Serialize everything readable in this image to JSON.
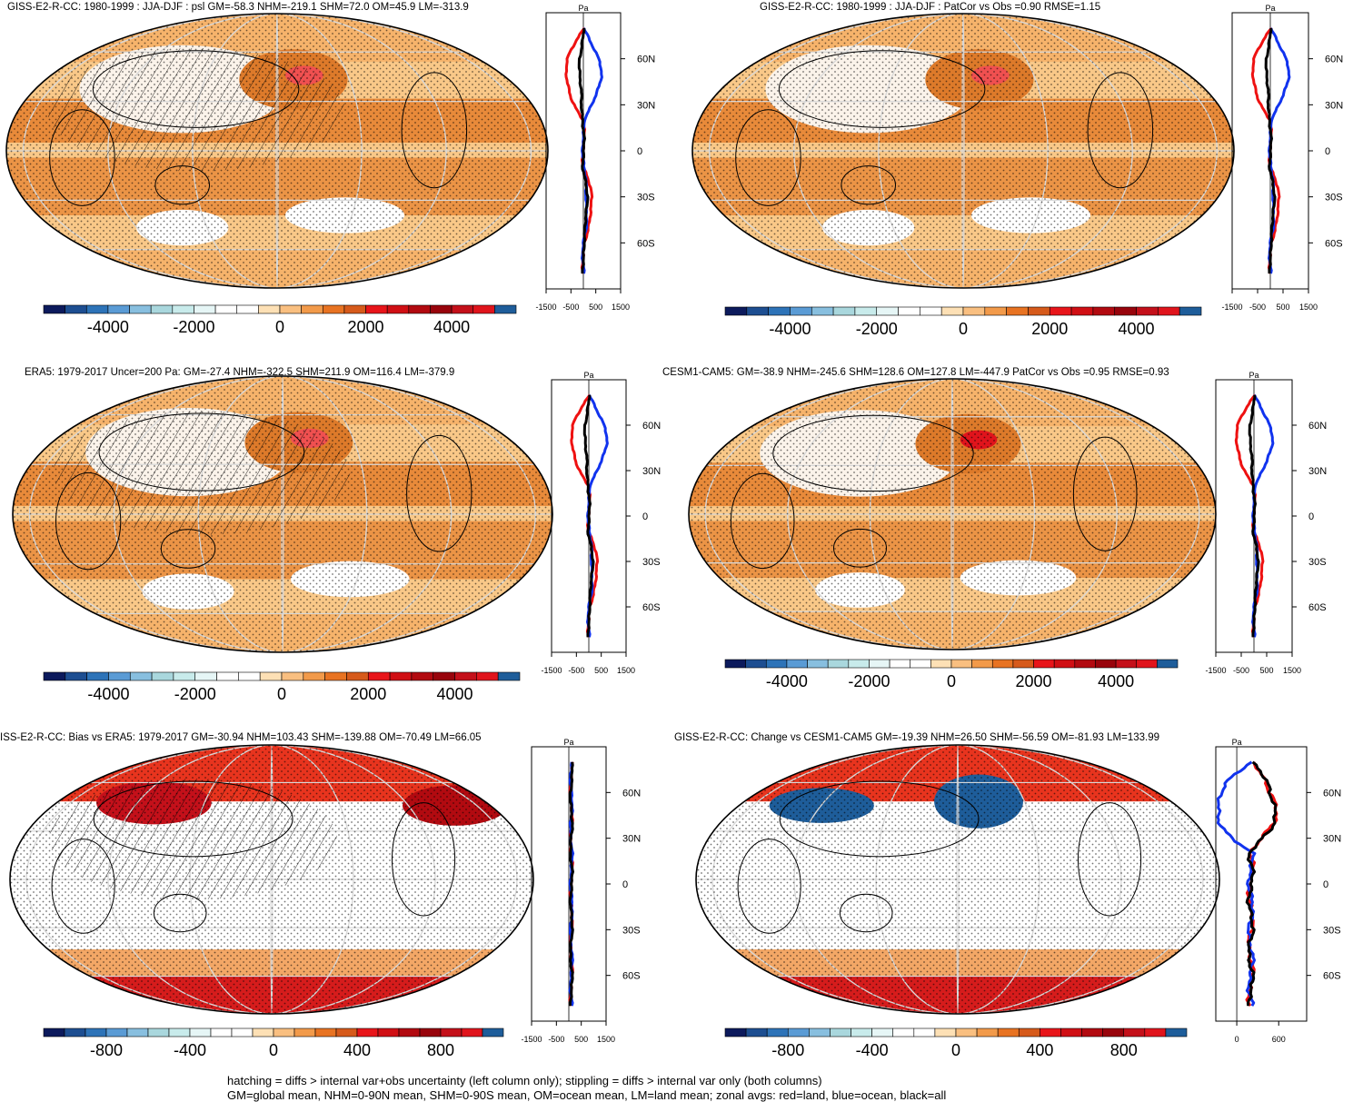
{
  "figure": {
    "captions": [
      "hatching = diffs > internal var+obs uncertainty (left column only); stippling = diffs > internal var only (both columns)",
      "GM=global mean, NHM=0-90N mean, SHM=0-90S mean, OM=ocean mean, LM=land mean; zonal avgs: red=land, blue=ocean, black=all"
    ],
    "profile_unit": "Pa",
    "lat_ticks": [
      "60N",
      "30N",
      "0",
      "30S",
      "60S"
    ]
  },
  "colors": {
    "land": "#ee1111",
    "ocean": "#1133ee",
    "all": "#000000",
    "palette": [
      "#0c1a5c",
      "#1d4e91",
      "#2d73b8",
      "#5a9bd5",
      "#88bfdf",
      "#a9d7dd",
      "#c8ebeb",
      "#e6f6f6",
      "#ffffff",
      "#ffffff",
      "#fde0b5",
      "#f9bf80",
      "#f29a4a",
      "#e87322",
      "#d65a1b",
      "#e8151a",
      "#d00f14",
      "#b20a10",
      "#98040c",
      "#c4101a",
      "#e0141c",
      "#1e5d9a"
    ]
  },
  "chart_data": [
    {
      "type": "map",
      "title": "GISS-E2-R-CC: 1980-1999 : JJA-DJF : psl GM=-58.3 NHM=-219.1 SHM=72.0 OM=45.9 LM=-313.9",
      "colorbar": {
        "ticks": [
          -4000,
          -2000,
          0,
          2000,
          4000
        ],
        "labels": [
          "-4000",
          "-2000",
          "0",
          "2000",
          "4000"
        ],
        "range": [
          -5500,
          5500
        ]
      },
      "profile_xticks": [
        "-1500",
        "-500",
        "500",
        "1500"
      ],
      "profile_xlim": [
        -1500,
        1500
      ],
      "hatching": true,
      "stippling": true
    },
    {
      "type": "map",
      "title": "GISS-E2-R-CC: 1980-1999 : JJA-DJF : PatCor vs Obs =0.90 RMSE=1.15",
      "colorbar": {
        "ticks": [
          -4000,
          -2000,
          0,
          2000,
          4000
        ],
        "labels": [
          "-4000",
          "-2000",
          "0",
          "2000",
          "4000"
        ],
        "range": [
          -5500,
          5500
        ]
      },
      "profile_xticks": [
        "-1500",
        "-500",
        "500",
        "1500"
      ],
      "profile_xlim": [
        -1500,
        1500
      ],
      "hatching": false,
      "stippling": true
    },
    {
      "type": "map",
      "title": "ERA5: 1979-2017 Uncer=200 Pa: GM=-27.4 NHM=-322.5 SHM=211.9 OM=116.4 LM=-379.9",
      "colorbar": {
        "ticks": [
          -4000,
          -2000,
          0,
          2000,
          4000
        ],
        "labels": [
          "-4000",
          "-2000",
          "0",
          "2000",
          "4000"
        ],
        "range": [
          -5500,
          5500
        ]
      },
      "profile_xticks": [
        "-1500",
        "-500",
        "500",
        "1500"
      ],
      "profile_xlim": [
        -1500,
        1500
      ],
      "hatching": true,
      "stippling": true
    },
    {
      "type": "map",
      "title": "CESM1-CAM5: GM=-38.9 NHM=-245.6 SHM=128.6 OM=127.8 LM=-447.9 PatCor vs Obs =0.95 RMSE=0.93",
      "colorbar": {
        "ticks": [
          -4000,
          -2000,
          0,
          2000,
          4000
        ],
        "labels": [
          "-4000",
          "-2000",
          "0",
          "2000",
          "4000"
        ],
        "range": [
          -5500,
          5500
        ]
      },
      "profile_xticks": [
        "-1500",
        "-500",
        "500",
        "1500"
      ],
      "profile_xlim": [
        -1500,
        1500
      ],
      "hatching": false,
      "stippling": true
    },
    {
      "type": "map",
      "title": "ISS-E2-R-CC: Bias vs ERA5: 1979-2017 GM=-30.94 NHM=103.43 SHM=-139.88 OM=-70.49 LM=66.05",
      "colorbar": {
        "ticks": [
          -800,
          -400,
          0,
          400,
          800
        ],
        "labels": [
          "-800",
          "-400",
          "0",
          "400",
          "800"
        ],
        "range": [
          -1100,
          1100
        ]
      },
      "profile_xticks": [
        "-1500",
        "-500",
        "500",
        "1500"
      ],
      "profile_xlim": [
        -1500,
        1500
      ],
      "hatching": true,
      "stippling": true
    },
    {
      "type": "map",
      "title": "GISS-E2-R-CC: Change vs CESM1-CAM5 GM=-19.39 NHM=26.50 SHM=-56.59 OM=-81.93 LM=133.99",
      "colorbar": {
        "ticks": [
          -800,
          -400,
          0,
          400,
          800
        ],
        "labels": [
          "-800",
          "-400",
          "0",
          "400",
          "800"
        ],
        "range": [
          -1100,
          1100
        ]
      },
      "profile_xticks": [
        "0",
        "600"
      ],
      "profile_xlim": [
        -300,
        1000
      ],
      "hatching": false,
      "stippling": true
    }
  ]
}
